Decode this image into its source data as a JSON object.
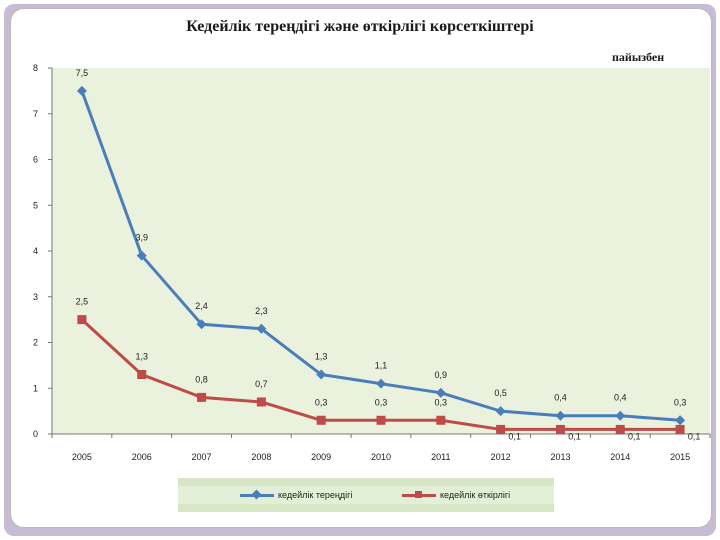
{
  "chart_data": {
    "type": "line",
    "title": "Кедейлік тереңдігі және өткірлігі көрсеткіштері",
    "unit_label": "пайызбен",
    "categories": [
      "2005",
      "2006",
      "2007",
      "2008",
      "2009",
      "2010",
      "2011",
      "2012",
      "2013",
      "2014",
      "2015"
    ],
    "series": [
      {
        "name": "кедейлік тереңдігі",
        "color": "#4a7ebb",
        "marker": "diamond",
        "values": [
          7.5,
          3.9,
          2.4,
          2.3,
          1.3,
          1.1,
          0.9,
          0.5,
          0.4,
          0.4,
          0.3
        ],
        "labels": [
          "7,5",
          "3,9",
          "2,4",
          "2,3",
          "1,3",
          "1,1",
          "0,9",
          "0,5",
          "0,4",
          "0,4",
          "0,3"
        ]
      },
      {
        "name": "кедейлік өткірлігі",
        "color": "#be4b48",
        "marker": "square",
        "values": [
          2.5,
          1.3,
          0.8,
          0.7,
          0.3,
          0.3,
          0.3,
          0.1,
          0.1,
          0.1,
          0.1
        ],
        "labels": [
          "2,5",
          "1,3",
          "0,8",
          "0,7",
          "0,3",
          "0,3",
          "0,3",
          "0,1",
          "0,1",
          "0,1",
          "0,1"
        ]
      }
    ],
    "y_ticks": [
      "0",
      "1",
      "2",
      "3",
      "4",
      "5",
      "6",
      "7",
      "8"
    ],
    "ylim": [
      0,
      8
    ],
    "grid": false,
    "plot_background": "#eaf1dd",
    "legend_position": "bottom"
  }
}
